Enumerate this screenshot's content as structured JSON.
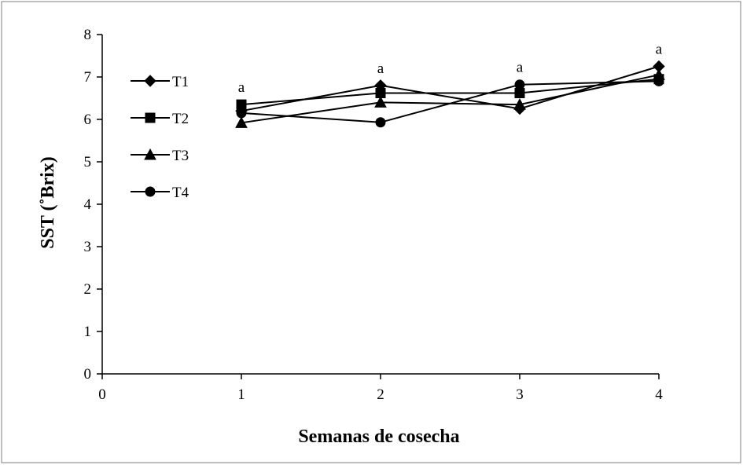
{
  "chart_data": {
    "type": "line",
    "xlabel": "Semanas de cosecha",
    "ylabel": "SST (˚Brix)",
    "xlim": [
      0,
      4
    ],
    "ylim": [
      0,
      8
    ],
    "x_ticks": [
      0,
      1,
      2,
      3,
      4
    ],
    "y_ticks": [
      0,
      1,
      2,
      3,
      4,
      5,
      6,
      7,
      8
    ],
    "grid": false,
    "legend_position": "top-left",
    "x": [
      1,
      2,
      3,
      4
    ],
    "series": [
      {
        "name": "T1",
        "marker": "diamond",
        "values": [
          6.2,
          6.8,
          6.25,
          7.25
        ]
      },
      {
        "name": "T2",
        "marker": "square",
        "values": [
          6.35,
          6.62,
          6.62,
          6.95
        ]
      },
      {
        "name": "T3",
        "marker": "triangle",
        "values": [
          5.92,
          6.4,
          6.35,
          7.05
        ]
      },
      {
        "name": "T4",
        "marker": "circle",
        "values": [
          6.15,
          5.93,
          6.82,
          6.9
        ]
      }
    ],
    "annotations": [
      {
        "x": 1,
        "y": 6.35,
        "text": "a"
      },
      {
        "x": 2,
        "y": 6.8,
        "text": "a"
      },
      {
        "x": 3,
        "y": 6.82,
        "text": "a"
      },
      {
        "x": 4,
        "y": 7.25,
        "text": "a"
      }
    ]
  }
}
